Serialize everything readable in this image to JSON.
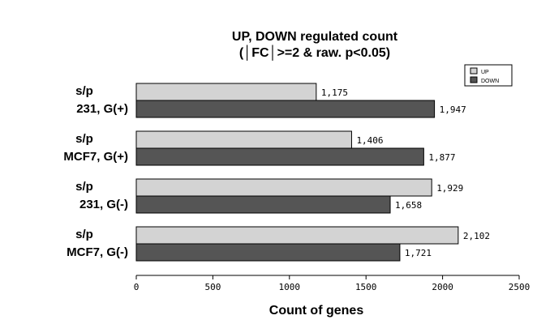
{
  "chart_data": {
    "type": "bar",
    "orientation": "horizontal",
    "title_lines": [
      "UP, DOWN regulated count",
      "(│FC│>=2 & raw. p<0.05)"
    ],
    "xlabel": "Count of genes",
    "xlim": [
      0,
      2500
    ],
    "xticks": [
      "0",
      "500",
      "1000",
      "1500",
      "2000",
      "2500"
    ],
    "categories": [
      {
        "line1": "s/p",
        "line2": "231, G(+)"
      },
      {
        "line1": "s/p",
        "line2": "MCF7, G(+)"
      },
      {
        "line1": "s/p",
        "line2": "231, G(-)"
      },
      {
        "line1": "s/p",
        "line2": "MCF7, G(-)"
      }
    ],
    "series": [
      {
        "name": "UP",
        "color": "#d3d3d3",
        "values": [
          1175,
          1406,
          1929,
          2102
        ],
        "labels": [
          "1,175",
          "1,406",
          "1,929",
          "2,102"
        ]
      },
      {
        "name": "DOWN",
        "color": "#555555",
        "values": [
          1947,
          1877,
          1658,
          1721
        ],
        "labels": [
          "1,947",
          "1,877",
          "1,658",
          "1,721"
        ]
      }
    ],
    "legend": {
      "position": "top-right",
      "entries": [
        "UP",
        "DOWN"
      ]
    },
    "grid": false
  }
}
